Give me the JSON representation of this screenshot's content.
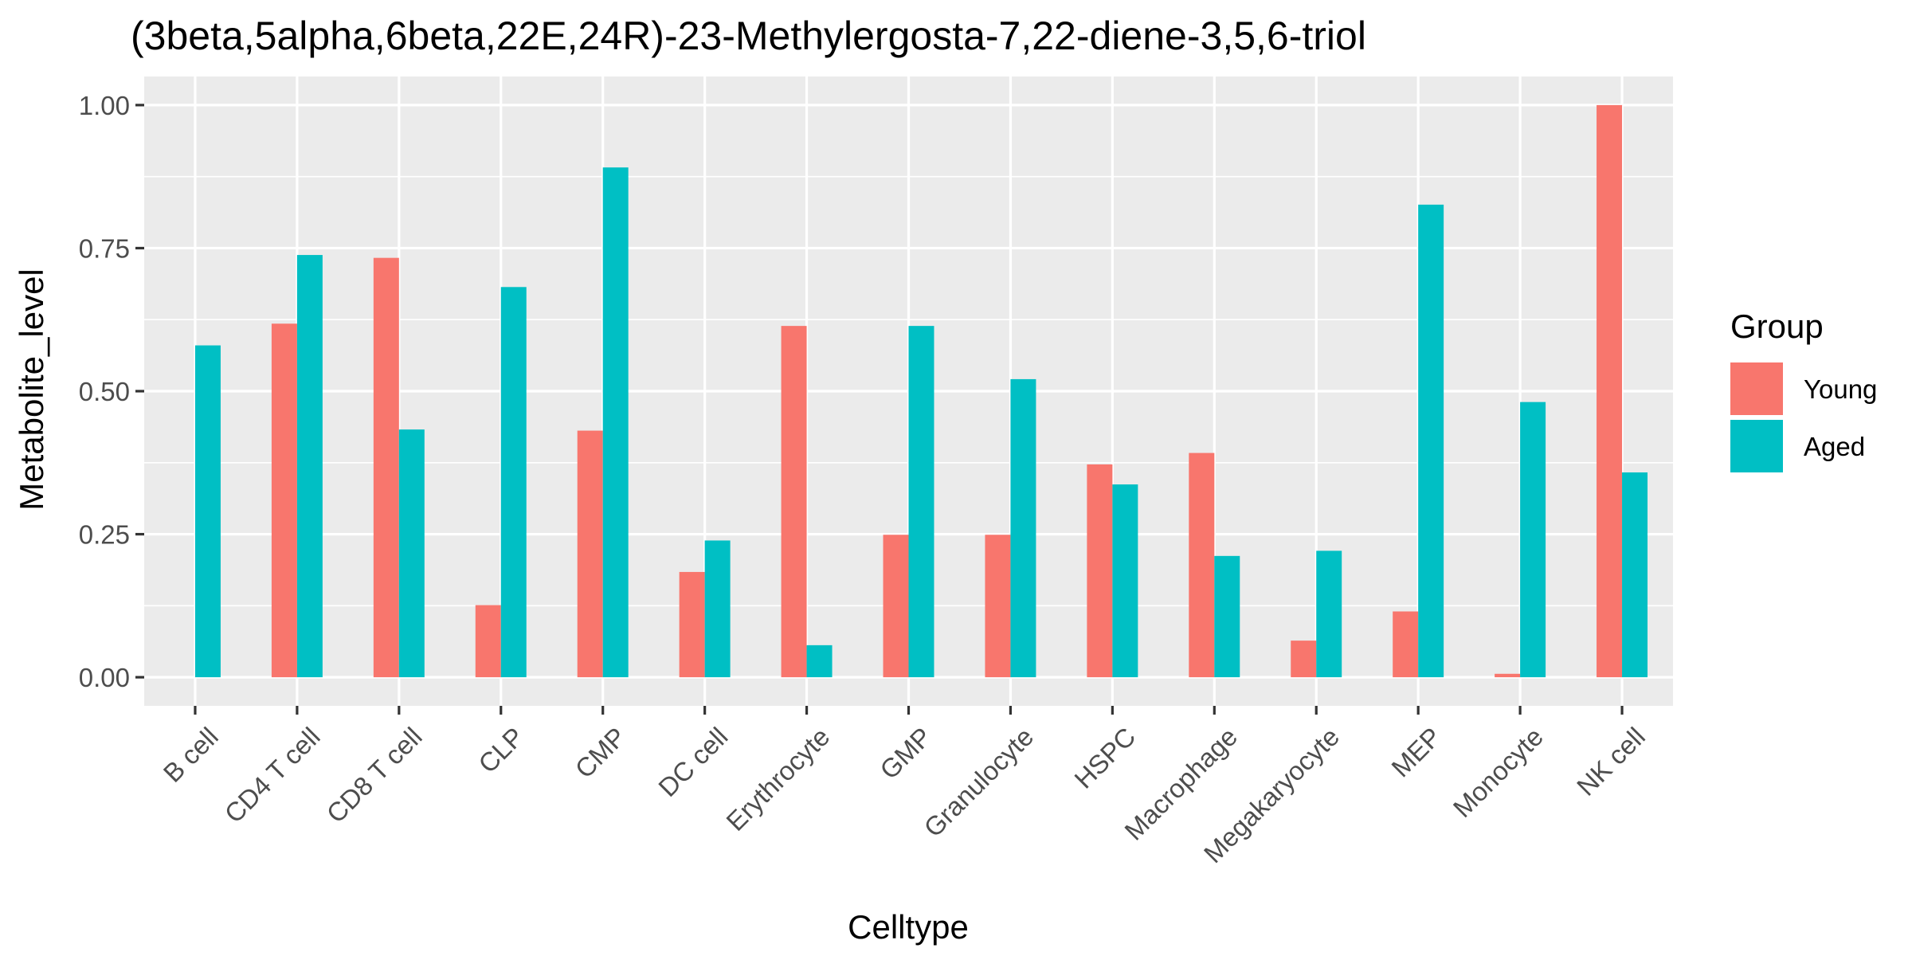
{
  "chart_data": {
    "type": "bar",
    "title": "(3beta,5alpha,6beta,22E,24R)-23-Methylergosta-7,22-diene-3,5,6-triol",
    "xlabel": "Celltype",
    "ylabel": "Metabolite_level",
    "ylim": [
      -0.05,
      1.05
    ],
    "yticks": [
      0.0,
      0.25,
      0.5,
      0.75,
      1.0
    ],
    "ytick_labels": [
      "0.00",
      "0.25",
      "0.50",
      "0.75",
      "1.00"
    ],
    "grid": true,
    "legend_position": "right",
    "legend_title": "Group",
    "categories": [
      "B cell",
      "CD4 T cell",
      "CD8 T cell",
      "CLP",
      "CMP",
      "DC cell",
      "Erythrocyte",
      "GMP",
      "Granulocyte",
      "HSPC",
      "Macrophage",
      "Megakaryocyte",
      "MEP",
      "Monocyte",
      "NK cell"
    ],
    "series": [
      {
        "name": "Young",
        "color": "#F8766D",
        "values": [
          0.0,
          0.618,
          0.733,
          0.126,
          0.431,
          0.184,
          0.614,
          0.249,
          0.249,
          0.372,
          0.392,
          0.064,
          0.115,
          0.006,
          1.0
        ]
      },
      {
        "name": "Aged",
        "color": "#00BFC4",
        "values": [
          0.58,
          0.738,
          0.433,
          0.682,
          0.891,
          0.239,
          0.056,
          0.614,
          0.521,
          0.337,
          0.212,
          0.221,
          0.826,
          0.481,
          0.358
        ]
      }
    ]
  }
}
